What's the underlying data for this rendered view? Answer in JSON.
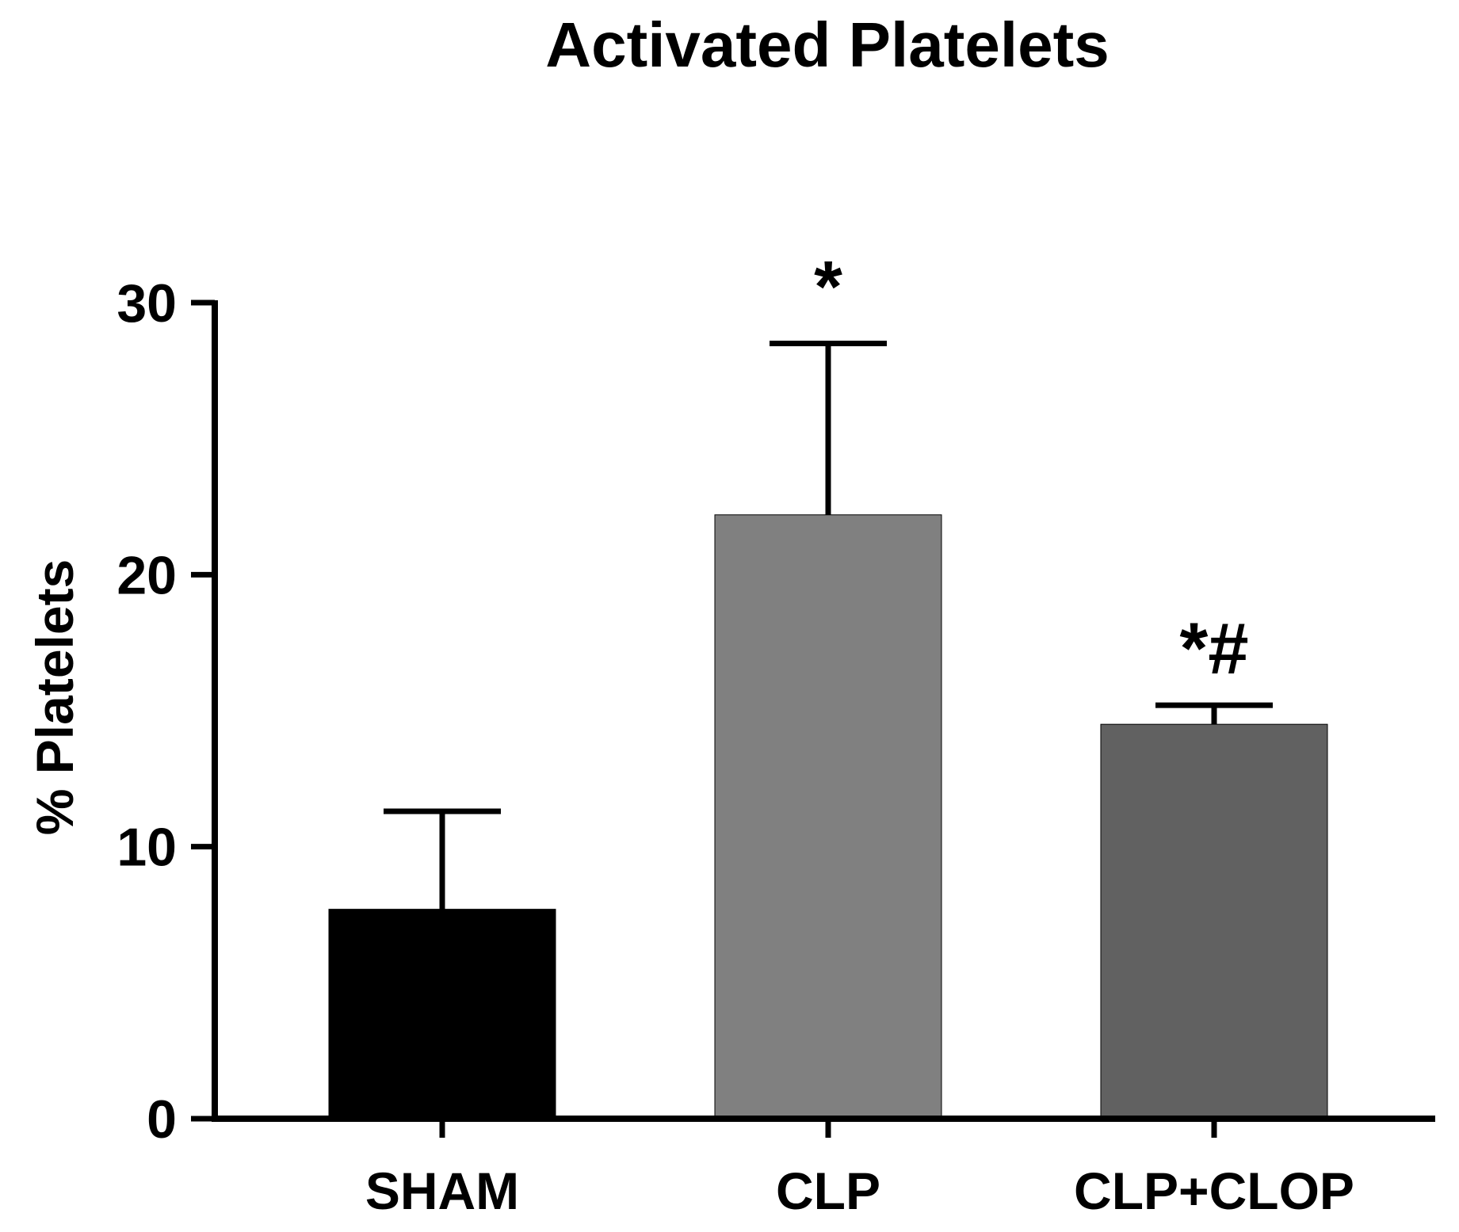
{
  "chart_data": {
    "type": "bar",
    "title": "Activated Platelets",
    "xlabel": "",
    "ylabel": "% Platelets",
    "categories": [
      "SHAM",
      "CLP",
      "CLP+CLOP"
    ],
    "values": [
      7.7,
      22.2,
      14.5
    ],
    "errors": [
      3.6,
      6.3,
      0.7
    ],
    "annotations": [
      "",
      "*",
      "*#"
    ],
    "colors": [
      "#000000",
      "#808080",
      "#616161"
    ],
    "ylim": [
      0,
      30
    ],
    "yticks": [
      0,
      10,
      20,
      30
    ],
    "grid": false,
    "legend": "none"
  }
}
